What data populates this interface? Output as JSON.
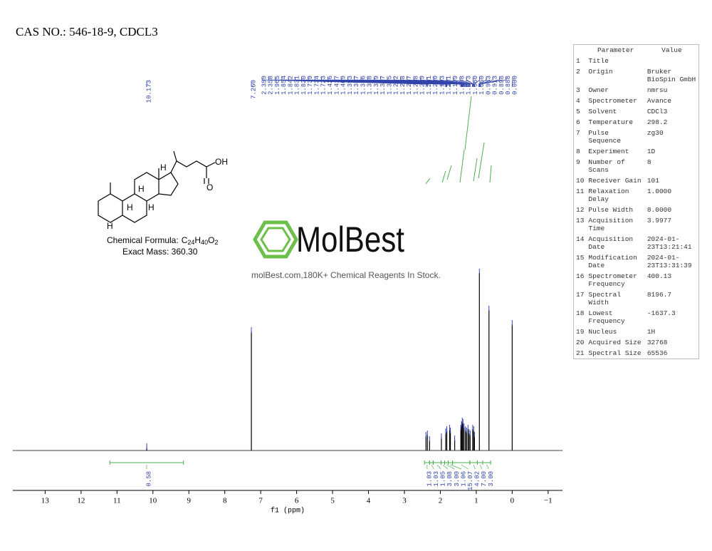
{
  "title": "CAS NO.: 546-18-9, CDCL3",
  "chart_data": {
    "type": "spectrum",
    "x_label": "f1 (ppm)",
    "xlim": [
      13.9,
      -1.4
    ],
    "xticks": [
      13,
      12,
      11,
      10,
      9,
      8,
      7,
      6,
      5,
      4,
      3,
      2,
      1,
      0,
      {
        "value": -1,
        "label": "−1"
      }
    ],
    "ylim": [
      0,
      250
    ],
    "color": "#000000",
    "peaks": [
      {
        "ppm": 10.173,
        "height": 4
      },
      {
        "ppm": 7.26,
        "height": 167
      },
      {
        "ppm": 2.4,
        "height": 20
      },
      {
        "ppm": 2.36,
        "height": 22
      },
      {
        "ppm": 2.3,
        "height": 14
      },
      {
        "ppm": 1.97,
        "height": 18
      },
      {
        "ppm": 1.85,
        "height": 25
      },
      {
        "ppm": 1.82,
        "height": 28
      },
      {
        "ppm": 1.74,
        "height": 30
      },
      {
        "ppm": 1.72,
        "height": 26
      },
      {
        "ppm": 1.6,
        "height": 15
      },
      {
        "ppm": 1.43,
        "height": 30
      },
      {
        "ppm": 1.41,
        "height": 35
      },
      {
        "ppm": 1.39,
        "height": 40
      },
      {
        "ppm": 1.37,
        "height": 38
      },
      {
        "ppm": 1.34,
        "height": 32
      },
      {
        "ppm": 1.3,
        "height": 28
      },
      {
        "ppm": 1.27,
        "height": 26
      },
      {
        "ppm": 1.23,
        "height": 30
      },
      {
        "ppm": 1.2,
        "height": 24
      },
      {
        "ppm": 1.17,
        "height": 22
      },
      {
        "ppm": 1.1,
        "height": 30
      },
      {
        "ppm": 1.07,
        "height": 28
      },
      {
        "ppm": 1.05,
        "height": 20
      },
      {
        "ppm": 0.913,
        "height": 249
      },
      {
        "ppm": 0.646,
        "height": 197
      },
      {
        "ppm": 0.0,
        "height": 177
      }
    ],
    "peak_labels": [
      "10.173",
      "7.260",
      "2.399",
      "2.358",
      "1.965",
      "1.854",
      "1.842",
      "1.831",
      "1.820",
      "1.739",
      "1.734",
      "1.723",
      "1.426",
      "1.417",
      "1.409",
      "1.393",
      "1.387",
      "1.376",
      "1.368",
      "1.359",
      "1.317",
      "1.335",
      "1.292",
      "1.278",
      "1.267",
      "1.238",
      "1.219",
      "1.231",
      "1.220",
      "1.193",
      "1.171",
      "1.109",
      "1.098",
      "1.073",
      "1.060",
      "1.050",
      "0.933",
      "0.913",
      "0.898",
      "0.888",
      "0.000"
    ],
    "integrals": [
      {
        "value": 0.58,
        "label": "0.58",
        "from": 11.2,
        "to": 9.15
      },
      {
        "value": 1.03,
        "label": "1.03",
        "from": 2.44,
        "to": 2.3
      },
      {
        "value": 1.03,
        "label": "1.03",
        "from": 2.3,
        "to": 2.2
      },
      {
        "value": 1.05,
        "label": "1.05",
        "from": 2.2,
        "to": 1.98
      },
      {
        "value": 3.08,
        "label": "3.08",
        "from": 1.98,
        "to": 1.88
      },
      {
        "value": 3.0,
        "label": "3.00",
        "from": 1.88,
        "to": 1.78
      },
      {
        "value": 1.06,
        "label": "1.06",
        "from": 1.78,
        "to": 1.66
      },
      {
        "value": 15.07,
        "label": "15.07",
        "from": 1.66,
        "to": 1.18
      },
      {
        "value": 4.02,
        "label": "4.02",
        "from": 1.18,
        "to": 0.97
      },
      {
        "value": 7.0,
        "label": "7.00",
        "from": 0.97,
        "to": 0.82
      },
      {
        "value": 3.0,
        "label": "3.00",
        "from": 0.82,
        "to": 0.6
      }
    ]
  },
  "structure": {
    "h_labels": [
      "H",
      "H",
      "H",
      "H",
      "H"
    ],
    "acid": "OH",
    "formula_prefix": "Chemical Formula:",
    "formula": [
      [
        "C",
        "24"
      ],
      [
        "H",
        "40"
      ],
      [
        "O",
        "2"
      ]
    ],
    "exact_mass": "Exact Mass: 360.30"
  },
  "watermark": {
    "logo": "MolBest",
    "tagline": "molBest.com,180K+ Chemical Reagents In Stock."
  },
  "parameters": {
    "header": [
      "Parameter",
      "Value"
    ],
    "rows": [
      [
        "1",
        "Title"
      ],
      [
        "2",
        "Origin",
        "Bruker BioSpin GmbH"
      ],
      [
        "3",
        "Owner",
        "nmrsu"
      ],
      [
        "4",
        "Spectrometer",
        "Avance"
      ],
      [
        "5",
        "Solvent",
        "CDCl3"
      ],
      [
        "6",
        "Temperature",
        "298.2"
      ],
      [
        "7",
        "Pulse Sequence",
        "zg30"
      ],
      [
        "8",
        "Experiment",
        "1D"
      ],
      [
        "9",
        "Number of Scans",
        "8"
      ],
      [
        "10",
        "Receiver Gain",
        "101"
      ],
      [
        "11",
        "Relaxation Delay",
        "1.0000"
      ],
      [
        "12",
        "Pulse Width",
        "8.0000"
      ],
      [
        "13",
        "Acquisition Time",
        "3.9977"
      ],
      [
        "14",
        "Acquisition Date",
        "2024-01-23T13:21:41"
      ],
      [
        "15",
        "Modification Date",
        "2024-01-23T13:31:39"
      ],
      [
        "16",
        "Spectrometer Frequency",
        "400.13"
      ],
      [
        "17",
        "Spectral Width",
        "8196.7"
      ],
      [
        "18",
        "Lowest Frequency",
        "-1637.3"
      ],
      [
        "19",
        "Nucleus",
        "1H"
      ],
      [
        "20",
        "Acquired Size",
        "32768"
      ],
      [
        "21",
        "Spectral Size",
        "65536"
      ]
    ]
  }
}
